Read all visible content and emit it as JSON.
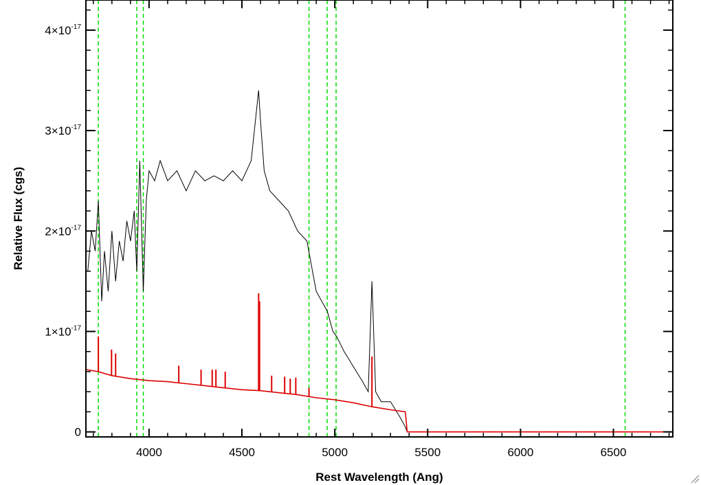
{
  "chart_data": {
    "type": "line",
    "xlabel": "Rest Wavelength (Ang)",
    "ylabel": "Relative Flux (cgs)",
    "xlim": [
      3660,
      6820
    ],
    "ylim": [
      -5e-19,
      4.3e-17
    ],
    "x_ticks": [
      4000,
      4500,
      5000,
      5500,
      6000,
      6500
    ],
    "x_tick_labels": [
      "4000",
      "4500",
      "5000",
      "5500",
      "6000",
      "6500"
    ],
    "y_ticks": [
      0,
      1e-17,
      2e-17,
      3e-17,
      4e-17
    ],
    "y_tick_labels": [
      {
        "base": "0",
        "exp": ""
      },
      {
        "base": "1×10",
        "exp": "-17"
      },
      {
        "base": "2×10",
        "exp": "-17"
      },
      {
        "base": "3×10",
        "exp": "-17"
      },
      {
        "base": "4×10",
        "exp": "-17"
      }
    ],
    "grid": false,
    "vertical_markers": {
      "color": "#00dd00",
      "style": "dashed",
      "x": [
        3727,
        3934,
        3969,
        4861,
        4959,
        5007,
        6563
      ]
    },
    "series": [
      {
        "color": "#000000",
        "x": [
          3670,
          3690,
          3710,
          3727,
          3745,
          3760,
          3780,
          3800,
          3820,
          3840,
          3860,
          3880,
          3900,
          3920,
          3934,
          3950,
          3969,
          3985,
          4000,
          4030,
          4060,
          4100,
          4150,
          4200,
          4250,
          4300,
          4350,
          4400,
          4450,
          4500,
          4550,
          4590,
          4600,
          4620,
          4650,
          4700,
          4750,
          4800,
          4850,
          4880,
          4900,
          4930,
          4960,
          4990,
          5010,
          5050,
          5100,
          5150,
          5180,
          5200,
          5220,
          5250,
          5300,
          5350,
          5380,
          5390,
          5400,
          5500,
          6000,
          6500,
          6820
        ],
        "values": [
          1.6e-17,
          2e-17,
          1.8e-17,
          2.3e-17,
          1.3e-17,
          1.8e-17,
          1.4e-17,
          2e-17,
          1.5e-17,
          1.9e-17,
          1.7e-17,
          2.1e-17,
          1.9e-17,
          2.2e-17,
          1.6e-17,
          2.7e-17,
          1.4e-17,
          2.3e-17,
          2.6e-17,
          2.5e-17,
          2.7e-17,
          2.5e-17,
          2.6e-17,
          2.4e-17,
          2.6e-17,
          2.5e-17,
          2.55e-17,
          2.5e-17,
          2.6e-17,
          2.5e-17,
          2.7e-17,
          3.4e-17,
          3.1e-17,
          2.6e-17,
          2.4e-17,
          2.3e-17,
          2.2e-17,
          2e-17,
          1.9e-17,
          1.6e-17,
          1.4e-17,
          1.3e-17,
          1.2e-17,
          1e-17,
          9.5e-18,
          8e-18,
          6.5e-18,
          5e-18,
          4e-18,
          1.5e-17,
          4e-18,
          3e-18,
          3e-18,
          1.5e-18,
          5e-19,
          0,
          0,
          0,
          0,
          0,
          0
        ]
      },
      {
        "color": "#dd0000",
        "x": [
          3660,
          3727,
          3800,
          3900,
          4000,
          4100,
          4200,
          4300,
          4400,
          4500,
          4600,
          4700,
          4800,
          4900,
          5000,
          5100,
          5200,
          5300,
          5380,
          5390,
          5400,
          5500,
          6000,
          6500,
          6820
        ],
        "values": [
          6.2e-18,
          6e-18,
          5.6e-18,
          5.3e-18,
          5.1e-18,
          5e-18,
          4.8e-18,
          4.6e-18,
          4.4e-18,
          4.2e-18,
          4.1e-18,
          3.9e-18,
          3.7e-18,
          3.4e-18,
          3.2e-18,
          2.9e-18,
          2.5e-18,
          2.2e-18,
          2e-18,
          0,
          0,
          0,
          0,
          0,
          0
        ],
        "emission_lines": [
          {
            "x": 3727,
            "peak": 9.5e-18
          },
          {
            "x": 3798,
            "peak": 8.2e-18
          },
          {
            "x": 3820,
            "peak": 7.8e-18
          },
          {
            "x": 4160,
            "peak": 6.6e-18
          },
          {
            "x": 4280,
            "peak": 6.2e-18
          },
          {
            "x": 4340,
            "peak": 6.2e-18
          },
          {
            "x": 4360,
            "peak": 6.2e-18
          },
          {
            "x": 4410,
            "peak": 6e-18
          },
          {
            "x": 4590,
            "peak": 1.38e-17
          },
          {
            "x": 4595,
            "peak": 1.3e-17
          },
          {
            "x": 4660,
            "peak": 5.6e-18
          },
          {
            "x": 4730,
            "peak": 5.5e-18
          },
          {
            "x": 4760,
            "peak": 5.3e-18
          },
          {
            "x": 4790,
            "peak": 5.4e-18
          },
          {
            "x": 4861,
            "peak": 4.4e-18
          },
          {
            "x": 5200,
            "peak": 7.5e-18
          }
        ]
      }
    ]
  }
}
